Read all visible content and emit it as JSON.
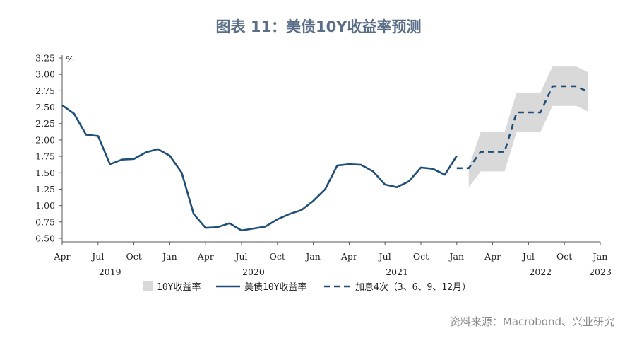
{
  "title": "图表 11：美债10Y收益率预测",
  "source": "资料来源：Macrobond、兴业研究",
  "chart_data": {
    "type": "line",
    "title": "图表 11：美债10Y收益率预测",
    "ylabel": "%",
    "ylim": [
      0.5,
      3.25
    ],
    "yticks": [
      "3.25",
      "3.00",
      "2.75",
      "2.50",
      "2.25",
      "2.00",
      "1.75",
      "1.50",
      "1.25",
      "1.00",
      "0.75",
      "0.50"
    ],
    "xlim": [
      "2019-04",
      "2023-01"
    ],
    "xticks": [
      {
        "label": "Apr",
        "t": "2019-04"
      },
      {
        "label": "Jul",
        "t": "2019-07"
      },
      {
        "label": "Oct",
        "t": "2019-10"
      },
      {
        "label": "Jan",
        "t": "2020-01"
      },
      {
        "label": "Apr",
        "t": "2020-04"
      },
      {
        "label": "Jul",
        "t": "2020-07"
      },
      {
        "label": "Oct",
        "t": "2020-10"
      },
      {
        "label": "Jan",
        "t": "2021-01"
      },
      {
        "label": "Apr",
        "t": "2021-04"
      },
      {
        "label": "Jul",
        "t": "2021-07"
      },
      {
        "label": "Oct",
        "t": "2021-10"
      },
      {
        "label": "Jan",
        "t": "2022-01"
      },
      {
        "label": "Apr",
        "t": "2022-04"
      },
      {
        "label": "Jul",
        "t": "2022-07"
      },
      {
        "label": "Oct",
        "t": "2022-10"
      },
      {
        "label": "Jan",
        "t": "2023-01"
      }
    ],
    "year_labels": [
      {
        "label": "2019",
        "t": "2019-08"
      },
      {
        "label": "2020",
        "t": "2020-08"
      },
      {
        "label": "2021",
        "t": "2021-08"
      },
      {
        "label": "2022",
        "t": "2022-08"
      },
      {
        "label": "2023",
        "t": "2023-01"
      }
    ],
    "legend": [
      "10Y收益率",
      "美债10Y收益率",
      "加息4次（3、6、9、12月）"
    ],
    "legend_position": "bottom",
    "series": [
      {
        "name": "美债10Y收益率",
        "style": "solid",
        "color": "#1f4e79",
        "points": [
          [
            "2019-04",
            2.53
          ],
          [
            "2019-05",
            2.4
          ],
          [
            "2019-06",
            2.08
          ],
          [
            "2019-07",
            2.06
          ],
          [
            "2019-08",
            1.63
          ],
          [
            "2019-09",
            1.7
          ],
          [
            "2019-10",
            1.71
          ],
          [
            "2019-11",
            1.81
          ],
          [
            "2019-12",
            1.86
          ],
          [
            "2020-01",
            1.76
          ],
          [
            "2020-02",
            1.5
          ],
          [
            "2020-03",
            0.87
          ],
          [
            "2020-04",
            0.66
          ],
          [
            "2020-05",
            0.67
          ],
          [
            "2020-06",
            0.73
          ],
          [
            "2020-07",
            0.62
          ],
          [
            "2020-08",
            0.65
          ],
          [
            "2020-09",
            0.68
          ],
          [
            "2020-10",
            0.79
          ],
          [
            "2020-11",
            0.87
          ],
          [
            "2020-12",
            0.93
          ],
          [
            "2021-01",
            1.07
          ],
          [
            "2021-02",
            1.25
          ],
          [
            "2021-03",
            1.61
          ],
          [
            "2021-04",
            1.63
          ],
          [
            "2021-05",
            1.62
          ],
          [
            "2021-06",
            1.52
          ],
          [
            "2021-07",
            1.32
          ],
          [
            "2021-08",
            1.28
          ],
          [
            "2021-09",
            1.37
          ],
          [
            "2021-10",
            1.58
          ],
          [
            "2021-11",
            1.56
          ],
          [
            "2021-12",
            1.47
          ],
          [
            "2022-01",
            1.76
          ]
        ]
      },
      {
        "name": "加息4次（3、6、9、12月）",
        "style": "dashed",
        "color": "#1f4e79",
        "points": [
          [
            "2022-01",
            1.57
          ],
          [
            "2022-02",
            1.57
          ],
          [
            "2022-03",
            1.82
          ],
          [
            "2022-04",
            1.82
          ],
          [
            "2022-05",
            1.82
          ],
          [
            "2022-06",
            2.42
          ],
          [
            "2022-07",
            2.42
          ],
          [
            "2022-08",
            2.42
          ],
          [
            "2022-09",
            2.82
          ],
          [
            "2022-10",
            2.82
          ],
          [
            "2022-11",
            2.82
          ],
          [
            "2022-12",
            2.73
          ]
        ]
      }
    ],
    "band": {
      "name": "10Y收益率",
      "color": "#d9d9d9",
      "points": [
        [
          "2022-02",
          1.28,
          1.58
        ],
        [
          "2022-03",
          1.52,
          2.12
        ],
        [
          "2022-04",
          1.52,
          2.12
        ],
        [
          "2022-05",
          1.52,
          2.12
        ],
        [
          "2022-06",
          2.12,
          2.72
        ],
        [
          "2022-07",
          2.12,
          2.72
        ],
        [
          "2022-08",
          2.12,
          2.72
        ],
        [
          "2022-09",
          2.52,
          3.12
        ],
        [
          "2022-10",
          2.52,
          3.12
        ],
        [
          "2022-11",
          2.52,
          3.12
        ],
        [
          "2022-12",
          2.43,
          3.03
        ]
      ]
    }
  }
}
